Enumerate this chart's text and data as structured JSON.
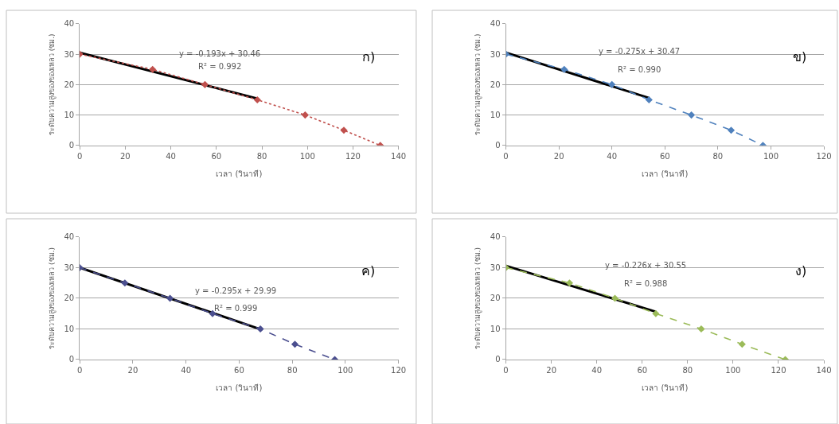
{
  "chart_data": [
    {
      "type": "line",
      "xlabel": "เวลา (วินาที)",
      "ylabel": "ระดับความสูงของของเหลว (ซม.)",
      "xlim": [
        0,
        140
      ],
      "xticks": [
        0,
        20,
        40,
        60,
        80,
        100,
        120,
        140
      ],
      "ylim": [
        0,
        40
      ],
      "yticks": [
        0,
        10,
        20,
        30,
        40
      ],
      "grid": "y",
      "annotations": [
        "y = -0.193x + 30.46",
        "R² = 0.992",
        "ก)"
      ],
      "series": [
        {
          "color": "#c0504d",
          "marker": "diamond",
          "line_style": "dotted",
          "x": [
            0,
            32,
            55,
            78,
            99,
            116,
            132
          ],
          "values": [
            30,
            25,
            20,
            15,
            10,
            5,
            0
          ]
        },
        {
          "color": "#000000",
          "marker": "none",
          "line_style": "solid",
          "x": [
            0,
            78
          ],
          "values": [
            30.5,
            15.4
          ]
        }
      ]
    },
    {
      "type": "line",
      "xlabel": "เวลา (วินาที)",
      "ylabel": "ระดับความสูงของของเหลว (ซม.)",
      "xlim": [
        0,
        120
      ],
      "xticks": [
        0,
        20,
        40,
        60,
        80,
        100,
        120
      ],
      "ylim": [
        0,
        40
      ],
      "yticks": [
        0,
        10,
        20,
        30,
        40
      ],
      "grid": "y",
      "annotations": [
        "y = -0.275x + 30.47",
        "R² = 0.990",
        "ข)"
      ],
      "series": [
        {
          "color": "#4f81bd",
          "marker": "diamond",
          "line_style": "dashed",
          "x": [
            0,
            22,
            40,
            54,
            70,
            85,
            97
          ],
          "values": [
            30,
            25,
            20,
            15,
            10,
            5,
            0
          ]
        },
        {
          "color": "#000000",
          "marker": "none",
          "line_style": "solid",
          "x": [
            0,
            54
          ],
          "values": [
            30.5,
            15.6
          ]
        }
      ]
    },
    {
      "type": "line",
      "xlabel": "เวลา (วินาที)",
      "ylabel": "ระดับความสูงของของเหลว (ซม.)",
      "xlim": [
        0,
        120
      ],
      "xticks": [
        0,
        20,
        40,
        60,
        80,
        100,
        120
      ],
      "ylim": [
        0,
        40
      ],
      "yticks": [
        0,
        10,
        20,
        30,
        40
      ],
      "grid": "y",
      "annotations": [
        "y = -0.295x + 29.99",
        "R² = 0.999",
        "ค)"
      ],
      "series": [
        {
          "color": "#4b4f8f",
          "marker": "diamond",
          "line_style": "dashed",
          "x": [
            0,
            17,
            34,
            50,
            68,
            81,
            96
          ],
          "values": [
            30,
            25,
            20,
            15,
            10,
            5,
            0
          ]
        },
        {
          "color": "#000000",
          "marker": "none",
          "line_style": "solid",
          "x": [
            0,
            68
          ],
          "values": [
            30.0,
            9.9
          ]
        }
      ]
    },
    {
      "type": "line",
      "xlabel": "เวลา (วินาที)",
      "ylabel": "ระดับความสูงของของเหลว (ซม.)",
      "xlim": [
        0,
        140
      ],
      "xticks": [
        0,
        20,
        40,
        60,
        80,
        100,
        120,
        140
      ],
      "ylim": [
        0,
        40
      ],
      "yticks": [
        0,
        10,
        20,
        30,
        40
      ],
      "grid": "y",
      "annotations": [
        "y = -0.226x + 30.55",
        "R² = 0.988",
        "ง)"
      ],
      "series": [
        {
          "color": "#9bbb59",
          "marker": "diamond",
          "line_style": "dashed",
          "x": [
            0,
            28,
            48,
            66,
            86,
            104,
            123
          ],
          "values": [
            30,
            25,
            20,
            15,
            10,
            5,
            0
          ]
        },
        {
          "color": "#000000",
          "marker": "none",
          "line_style": "solid",
          "x": [
            0,
            66
          ],
          "values": [
            30.6,
            15.6
          ]
        }
      ]
    }
  ]
}
